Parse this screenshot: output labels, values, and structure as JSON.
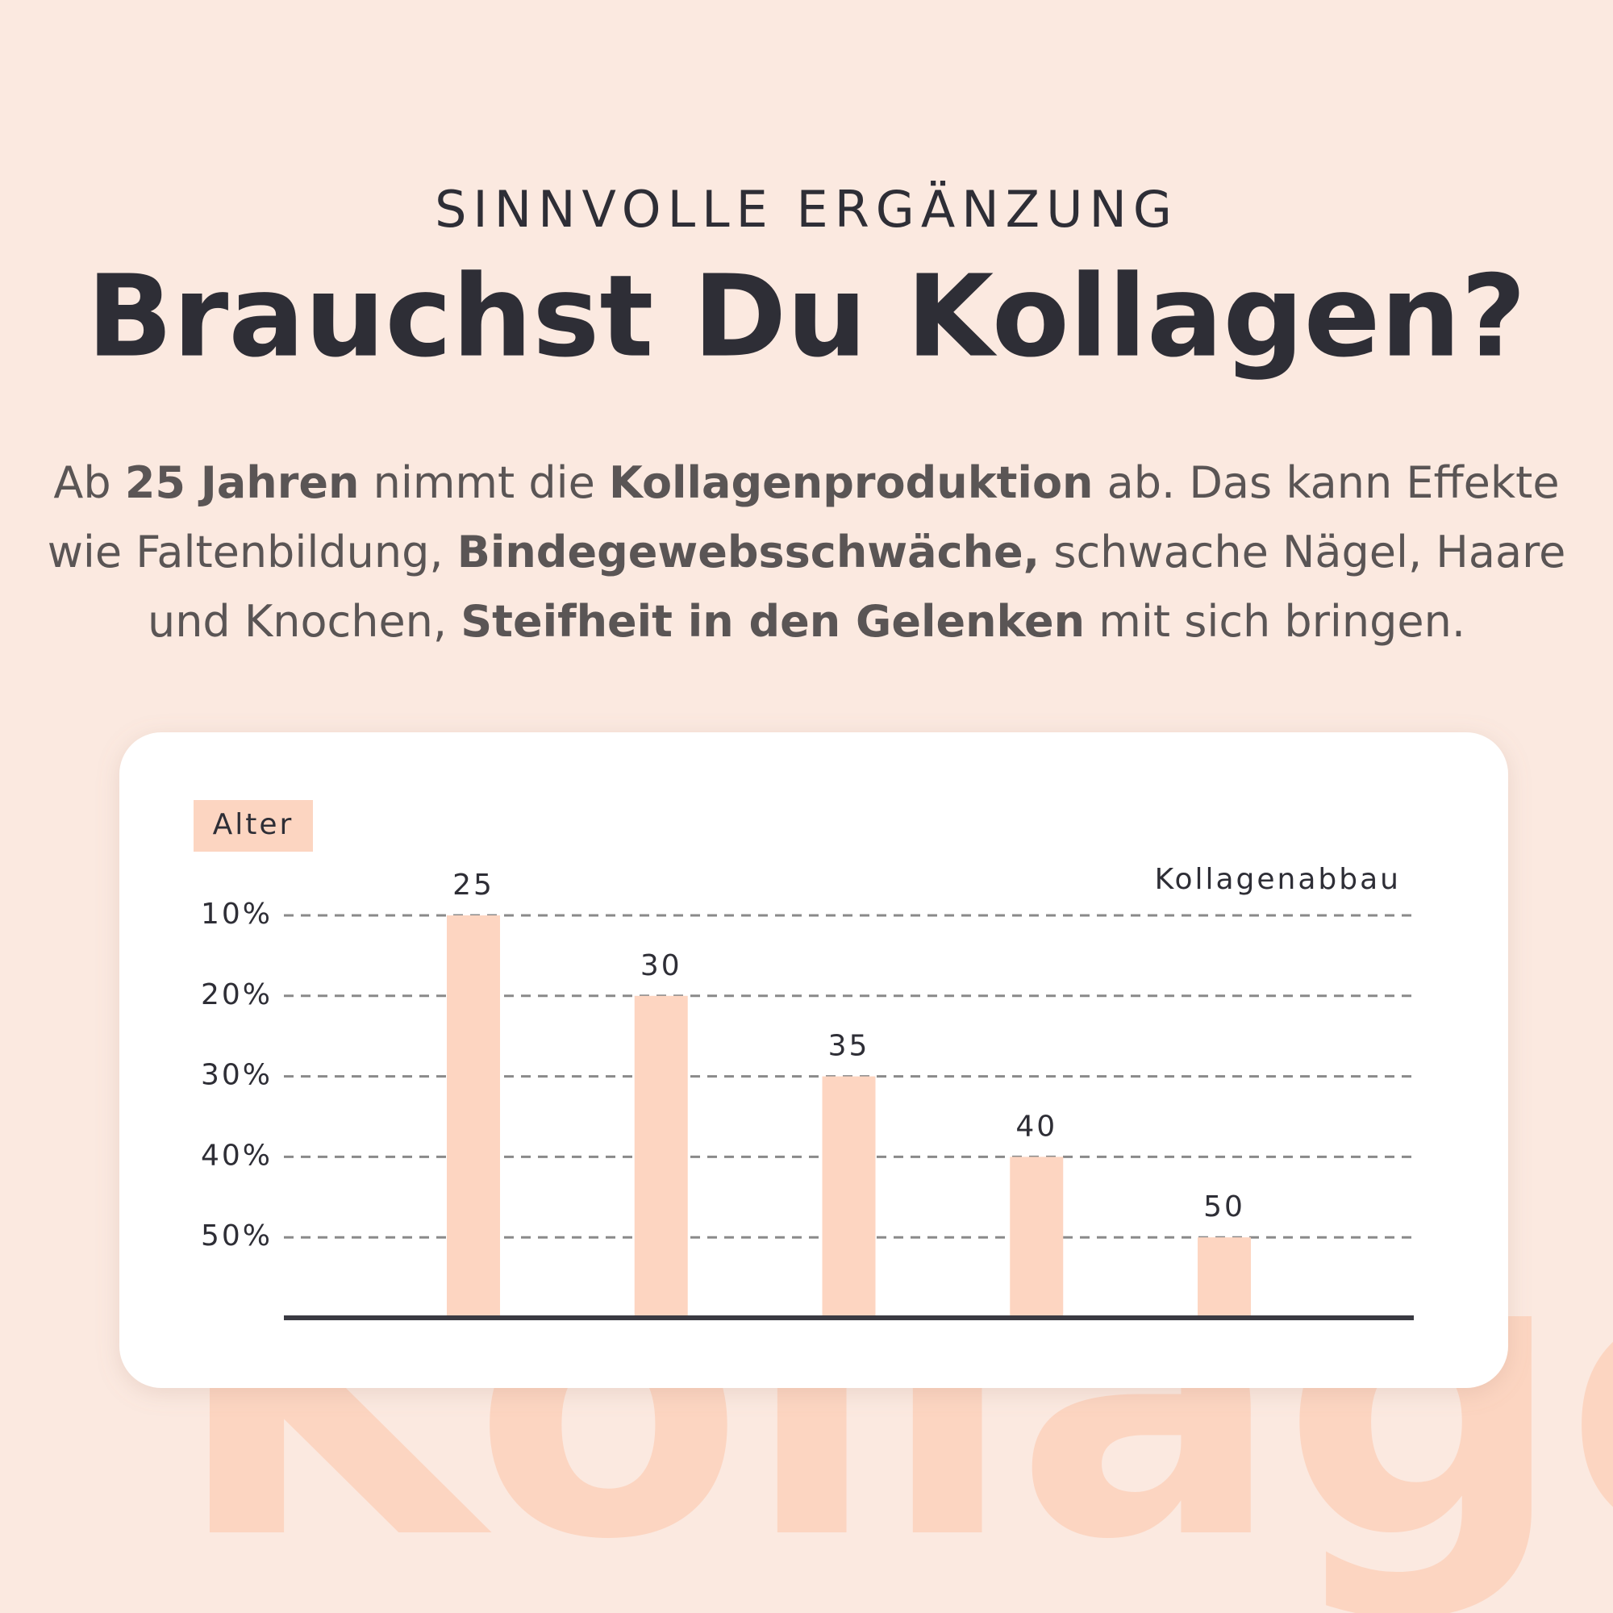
{
  "header": {
    "kicker": "SINNVOLLE ERGÄNZUNG",
    "title": "Brauchst Du Kollagen?",
    "intro": [
      [
        {
          "text": "Ab ",
          "bold": false
        },
        {
          "text": "25 Jahren",
          "bold": true
        },
        {
          "text": " nimmt die ",
          "bold": false
        },
        {
          "text": "Kollagenproduktion",
          "bold": true
        },
        {
          "text": " ab. Das kann Effekte",
          "bold": false
        }
      ],
      [
        {
          "text": "wie Faltenbildung, ",
          "bold": false
        },
        {
          "text": "Bindegewebsschwäche,",
          "bold": true
        },
        {
          "text": " schwache Nägel, Haare",
          "bold": false
        }
      ],
      [
        {
          "text": "und Knochen, ",
          "bold": false
        },
        {
          "text": "Steifheit in den Gelenken",
          "bold": true
        },
        {
          "text": " mit sich bringen.",
          "bold": false
        }
      ]
    ]
  },
  "watermark": "Kollagen",
  "chart_data": {
    "type": "bar",
    "legend_label": "Alter",
    "y_label": "Kollagenabbau",
    "categories": [
      "25",
      "30",
      "35",
      "40",
      "50"
    ],
    "values": [
      10,
      20,
      30,
      40,
      50
    ],
    "color": "#fdd5c1",
    "ylim": [
      60,
      10
    ],
    "yticks": [
      {
        "value": 10,
        "label": "10%"
      },
      {
        "value": 20,
        "label": "20%"
      },
      {
        "value": 30,
        "label": "30%"
      },
      {
        "value": 40,
        "label": "40%"
      },
      {
        "value": 50,
        "label": "50%"
      }
    ],
    "grid": true
  }
}
